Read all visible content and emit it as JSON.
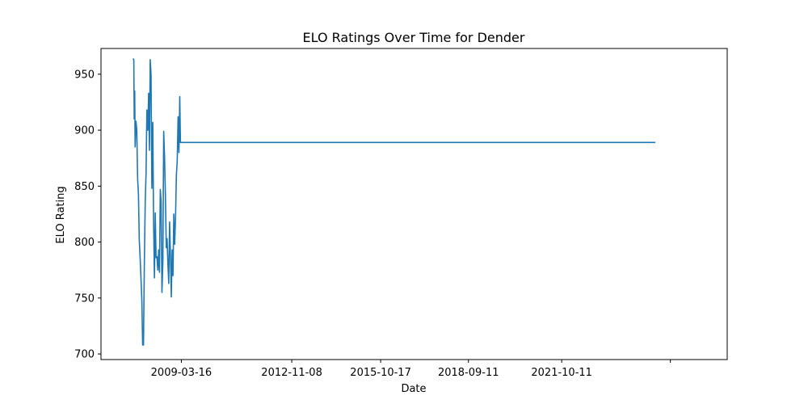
{
  "chart_data": {
    "type": "line",
    "title": "ELO Ratings Over Time for Dender",
    "xlabel": "Date",
    "ylabel": "ELO Rating",
    "x_type": "date",
    "xlim": [
      "2006-07-20",
      "2027-04-01"
    ],
    "ylim": [
      695,
      973
    ],
    "grid": false,
    "legend": "none",
    "line_color": "#1f77b4",
    "x_ticks": [
      {
        "value": "2009-03-16",
        "label": "2009-03-16"
      },
      {
        "value": "2012-11-08",
        "label": "2012-11-08"
      },
      {
        "value": "2015-10-17",
        "label": "2015-10-17"
      },
      {
        "value": "2018-09-11",
        "label": "2018-09-11"
      },
      {
        "value": "2021-10-11",
        "label": "2021-10-11"
      },
      {
        "value": "2025-05-15",
        "label": ""
      }
    ],
    "y_ticks": [
      {
        "value": 700,
        "label": "700"
      },
      {
        "value": 750,
        "label": "750"
      },
      {
        "value": 800,
        "label": "800"
      },
      {
        "value": 850,
        "label": "850"
      },
      {
        "value": 900,
        "label": "900"
      },
      {
        "value": 950,
        "label": "950"
      }
    ],
    "series": [
      {
        "x": [
          "2007-08-10",
          "2007-08-20",
          "2007-08-25",
          "2007-08-31",
          "2007-09-05",
          "2007-09-15",
          "2007-09-25",
          "2007-10-05",
          "2007-10-15",
          "2007-10-25",
          "2007-11-05",
          "2007-11-15",
          "2007-11-25",
          "2007-12-05",
          "2007-12-15",
          "2007-12-25",
          "2008-01-05",
          "2008-01-15",
          "2008-01-25",
          "2008-02-05",
          "2008-02-15",
          "2008-02-25",
          "2008-03-05",
          "2008-03-15",
          "2008-03-25",
          "2008-04-05",
          "2008-04-15",
          "2008-04-25",
          "2008-05-05",
          "2008-05-15",
          "2008-05-25",
          "2008-06-05",
          "2008-06-15",
          "2008-06-25",
          "2008-07-05",
          "2008-07-15",
          "2008-07-25",
          "2008-08-05",
          "2008-08-15",
          "2008-08-25",
          "2008-09-05",
          "2008-09-15",
          "2008-09-25",
          "2008-10-05",
          "2008-10-15",
          "2008-10-25",
          "2008-11-05",
          "2008-11-15",
          "2008-11-25",
          "2008-12-05",
          "2008-12-15",
          "2008-12-25",
          "2009-01-05",
          "2009-01-15",
          "2009-01-25",
          "2009-02-05",
          "2009-02-15",
          "2009-02-25",
          "2009-03-05",
          "2009-03-15",
          "2009-03-25",
          "2009-04-05",
          "2009-04-15",
          "2009-04-25",
          "2009-05-05",
          "2009-05-15",
          "2009-05-25",
          "2009-06-05",
          "2009-06-15",
          "2009-06-25",
          "2009-07-05",
          "2009-07-15",
          "2009-07-25",
          "2009-08-05",
          "2009-08-15",
          "2009-08-25",
          "2009-09-05",
          "2009-09-15",
          "2024-11-15"
        ],
        "y": [
          964,
          963,
          910,
          935,
          885,
          908,
          900,
          857,
          843,
          802,
          785,
          767,
          748,
          708,
          708,
          778,
          836,
          862,
          918,
          900,
          933,
          882,
          963,
          950,
          848,
          907,
          818,
          768,
          826,
          786,
          787,
          775,
          793,
          773,
          847,
          836,
          755,
          783,
          899,
          877,
          840,
          795,
          803,
          780,
          763,
          818,
          786,
          751,
          793,
          770,
          825,
          798,
          822,
          860,
          872,
          912,
          880,
          930,
          889,
          889,
          889,
          889,
          889,
          889,
          889,
          889,
          889,
          889,
          889,
          889,
          889,
          889,
          889,
          889,
          889,
          889,
          889,
          889,
          889
        ]
      }
    ]
  }
}
